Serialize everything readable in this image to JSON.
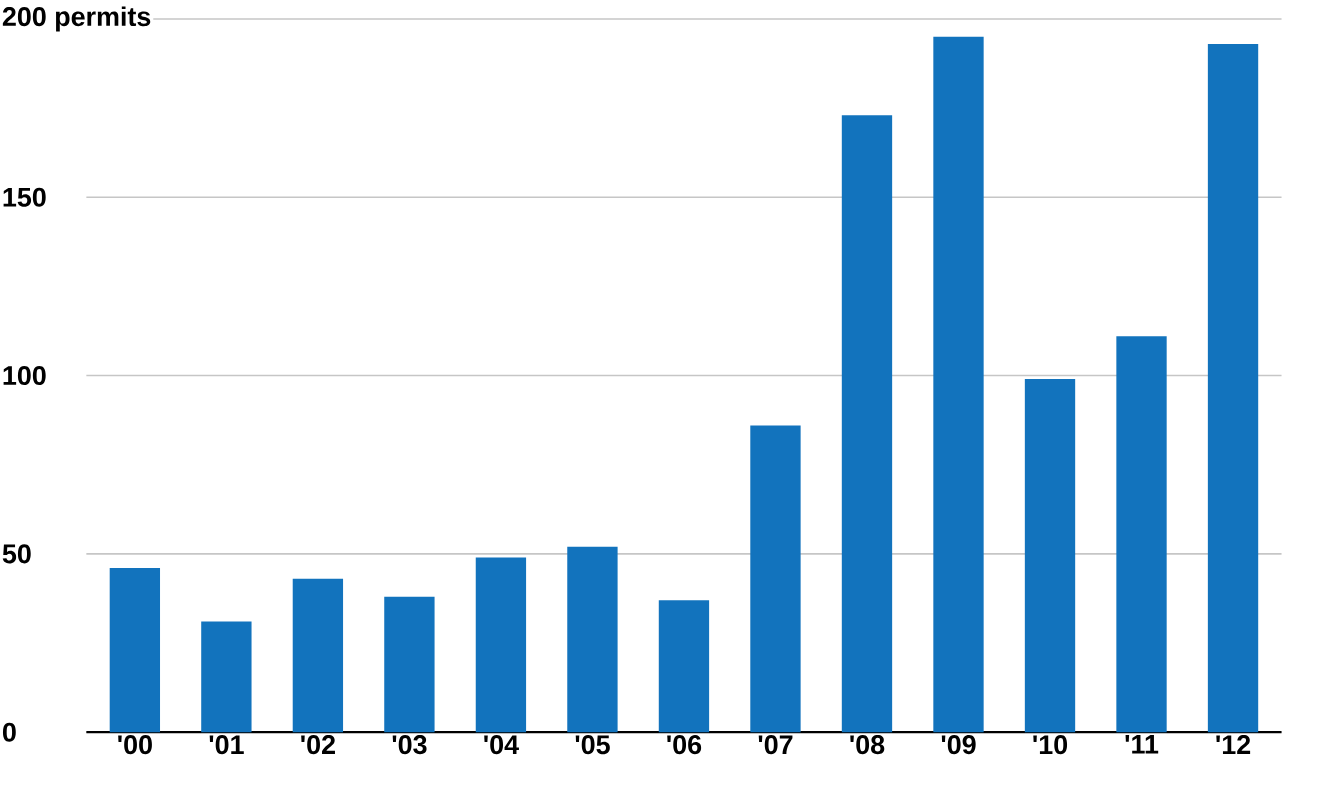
{
  "chart_data": {
    "type": "bar",
    "categories": [
      "'00",
      "'01",
      "'02",
      "'03",
      "'04",
      "'05",
      "'06",
      "'07",
      "'08",
      "'09",
      "'10",
      "'11",
      "'12"
    ],
    "values": [
      46,
      31,
      43,
      38,
      49,
      52,
      37,
      86,
      173,
      195,
      99,
      111,
      193
    ],
    "color": "#1273bd",
    "ylim": [
      0,
      200
    ],
    "yticks": [
      0,
      50,
      100,
      150,
      {
        "value": 200,
        "label": "200 permits"
      }
    ],
    "grid": "y"
  }
}
